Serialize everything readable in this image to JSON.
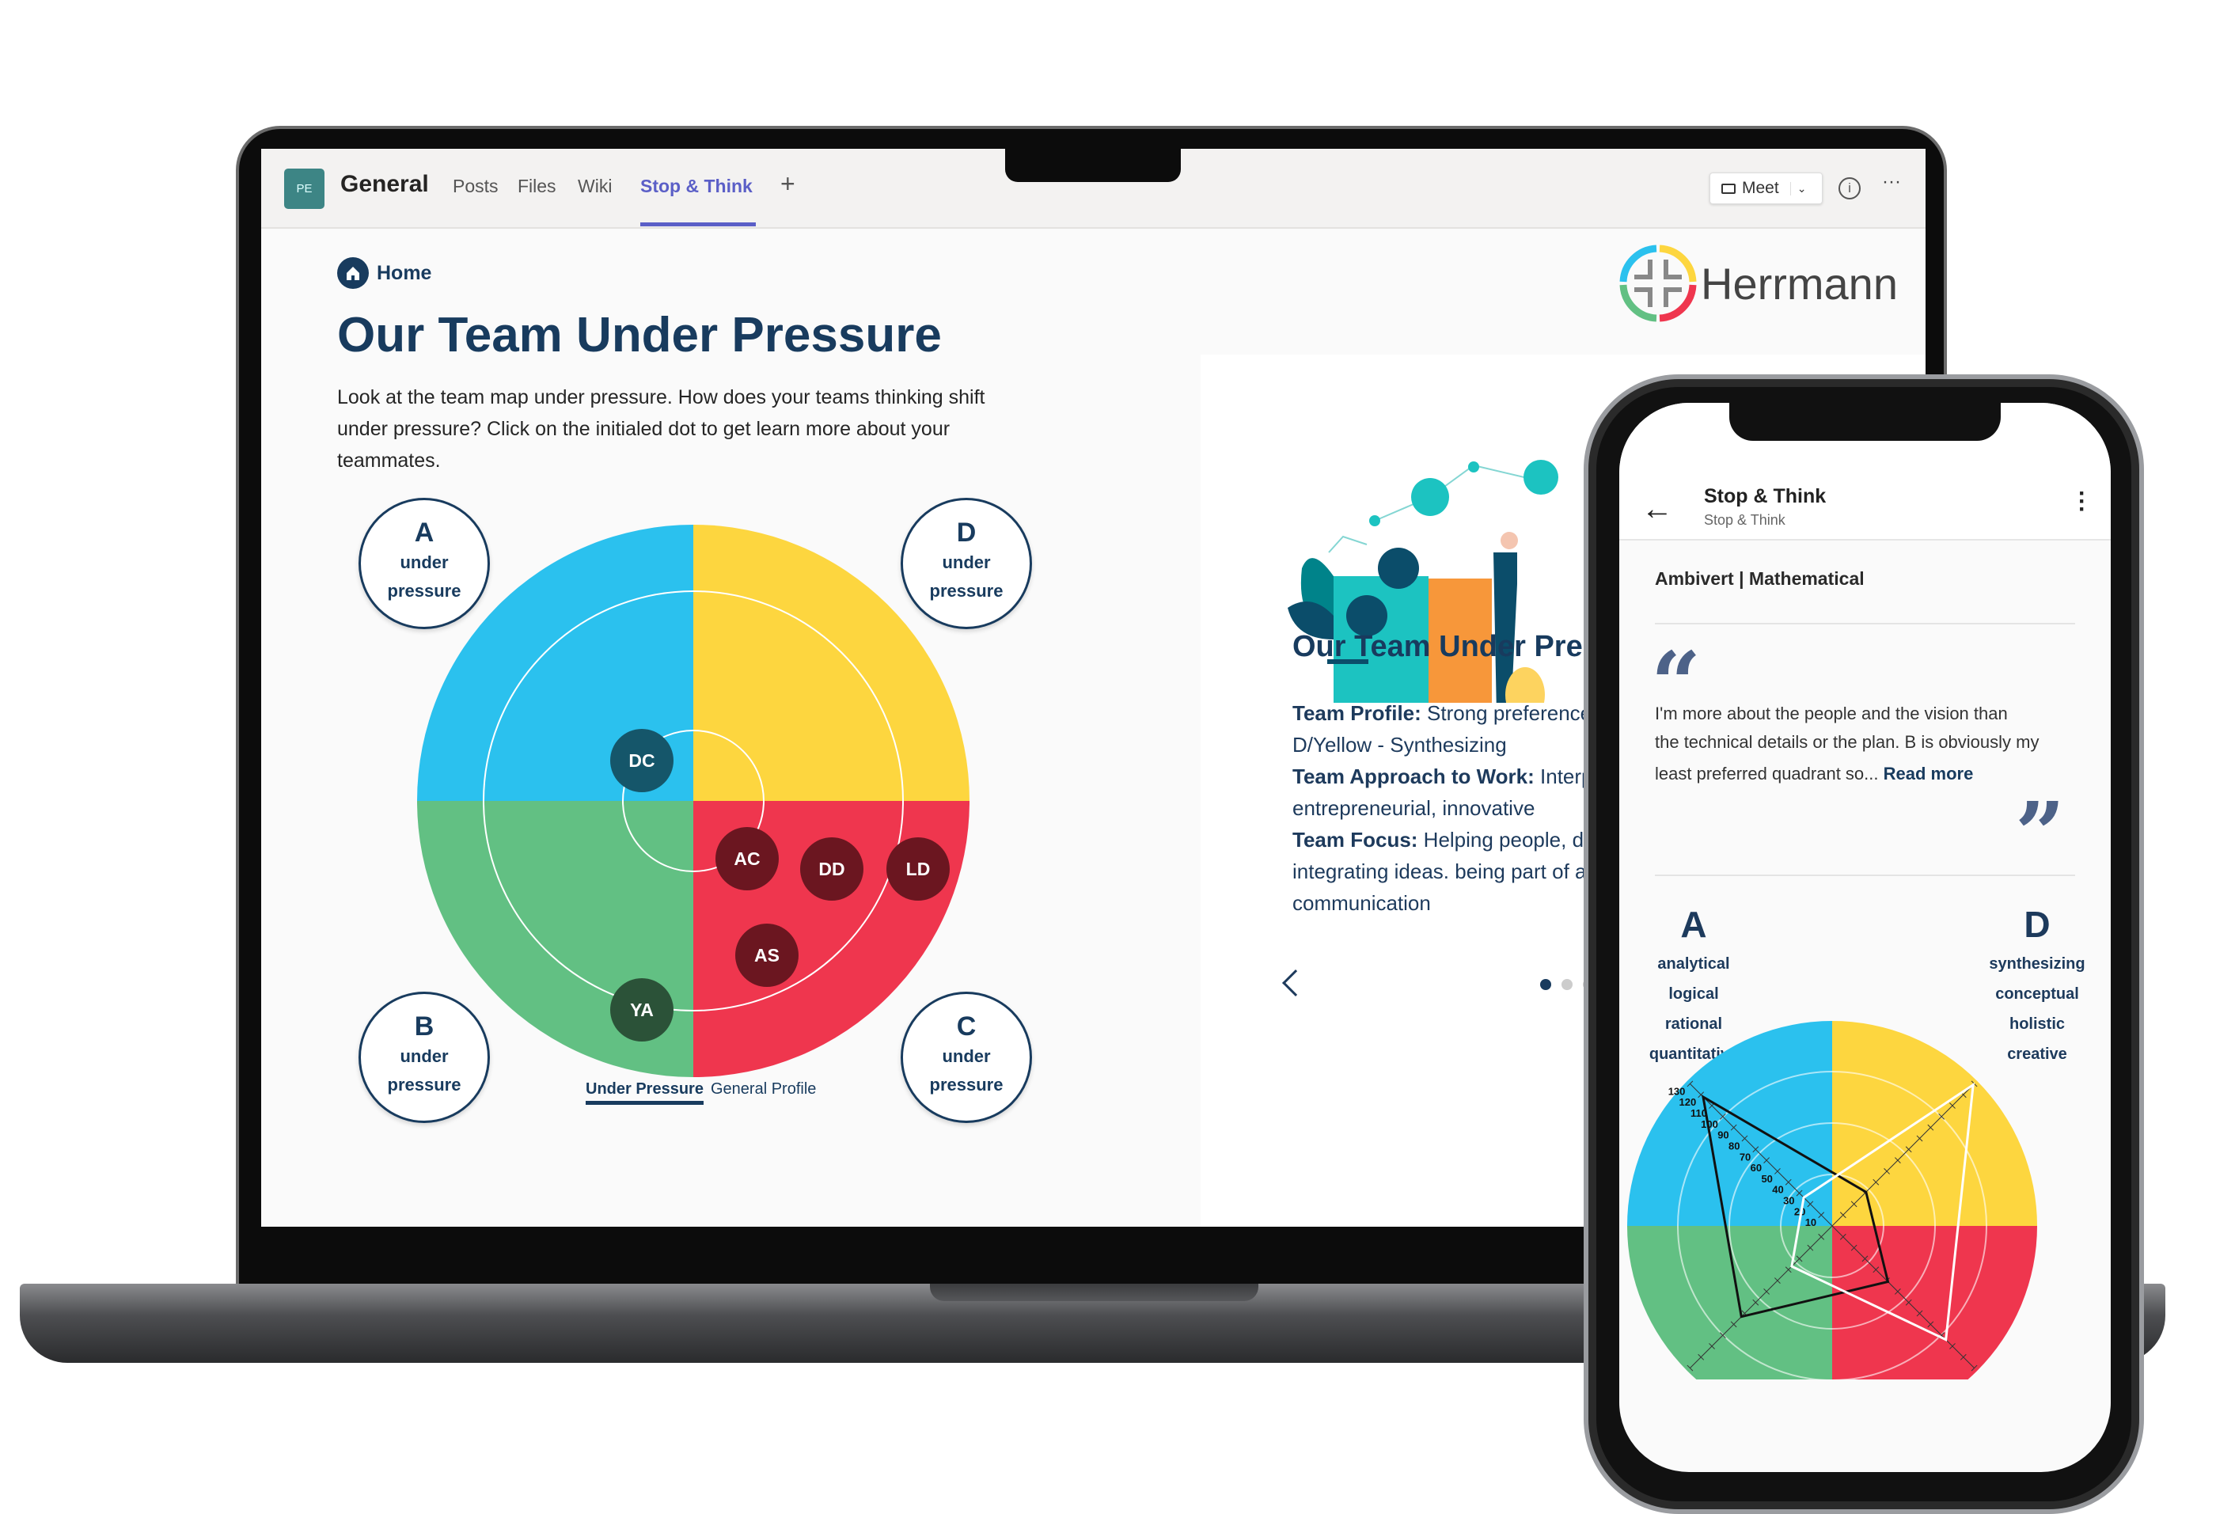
{
  "teams": {
    "avatar": "PE",
    "channel": "General",
    "tabs": [
      "Posts",
      "Files",
      "Wiki",
      "Stop & Think"
    ],
    "add_tab": "+",
    "meet_label": "Meet",
    "accent": "#5b5fc7"
  },
  "page": {
    "home_label": "Home",
    "title": "Our Team Under Pressure",
    "intro_lines": [
      "Look at the team map under pressure.  How does your teams thinking shift",
      "under pressure?  Click on the initialed dot to get learn more about your",
      "teammates."
    ],
    "logo_text": "Herrmann",
    "quadrants": [
      {
        "letter": "A",
        "line1": "under",
        "line2": "pressure",
        "color": "#2bc1ee"
      },
      {
        "letter": "D",
        "line1": "under",
        "line2": "pressure",
        "color": "#fdd63f"
      },
      {
        "letter": "B",
        "line1": "under",
        "line2": "pressure",
        "color": "#62c083"
      },
      {
        "letter": "C",
        "line1": "under",
        "line2": "pressure",
        "color": "#ef364e"
      }
    ],
    "dots": [
      "DC",
      "AC",
      "DD",
      "LD",
      "AS",
      "YA"
    ],
    "toggle": {
      "active": "Under Pressure",
      "inactive": "General Profile"
    }
  },
  "card": {
    "title": "Our Team Under Pres",
    "lines": [
      {
        "bold": "Team Profile:",
        "text": " Strong preferences"
      },
      {
        "bold": "",
        "text": "D/Yellow - Synthesizing"
      },
      {
        "bold": "Team Approach to Work:",
        "text": " Interpe"
      },
      {
        "bold": "",
        "text": "entrepreneurial, innovative"
      },
      {
        "bold": "Team Focus:",
        "text": " Helping people, de"
      },
      {
        "bold": "",
        "text": "integrating ideas. being part of a"
      },
      {
        "bold": "",
        "text": "communication"
      }
    ],
    "pager": {
      "active_index": 0,
      "count": 3
    }
  },
  "phone": {
    "title": "Stop & Think",
    "subtitle": "Stop & Think",
    "profile": "Ambivert | Mathematical",
    "quote_lines": [
      "I'm more about the people and the vision than",
      "the technical details or the plan. B is obviously my",
      "least preferred quadrant so..."
    ],
    "read_more": "Read more",
    "left_letter": "A",
    "left_words": [
      "analytical",
      "logical",
      "rational",
      "quantitative"
    ],
    "right_letter": "D",
    "right_words": [
      "synthesizing",
      "conceptual",
      "holistic",
      "creative"
    ]
  },
  "chart_data": {
    "type": "radar",
    "axes": [
      "A",
      "D",
      "C",
      "B"
    ],
    "ticks": [
      10,
      20,
      30,
      40,
      50,
      60,
      70,
      80,
      90,
      100,
      110,
      120,
      130
    ],
    "range": [
      0,
      130
    ],
    "quadrant_colors": {
      "A": "#2bc1ee",
      "D": "#fdd63f",
      "C": "#ef364e",
      "B": "#62c083"
    },
    "series": [
      {
        "color": "#111111",
        "values": [
          118,
          31,
          51,
          83
        ]
      },
      {
        "color": "#ffffff",
        "values": [
          26,
          129,
          104,
          37
        ]
      }
    ]
  }
}
